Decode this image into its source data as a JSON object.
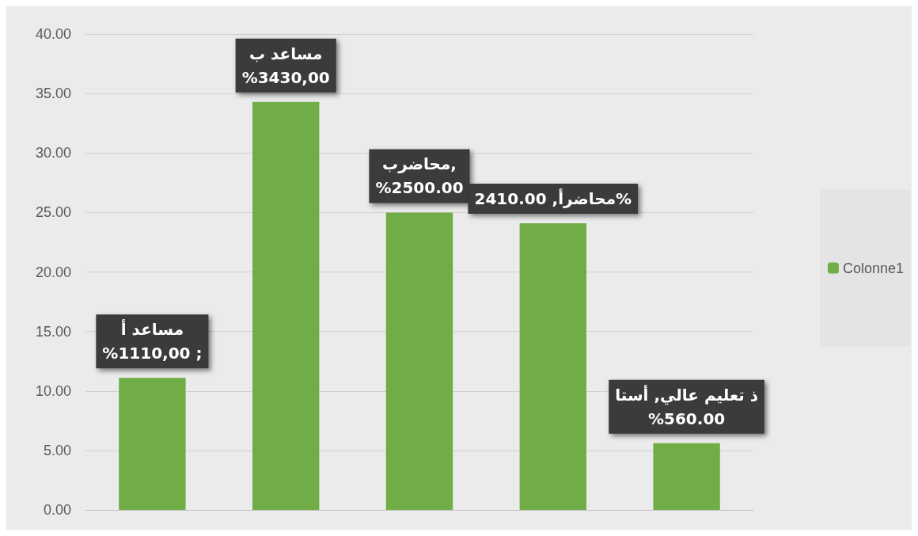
{
  "chart_data": {
    "type": "bar",
    "categories": [
      null,
      null,
      null,
      null,
      null
    ],
    "series": [
      {
        "name": "Colonne1",
        "color": "#70ad47",
        "values": [
          11.1,
          34.3,
          25.0,
          24.1,
          5.6
        ],
        "value_labels": [
          "مساعد أ\n%1110,00 ;",
          "مساعد ب\n%3430,00",
          "محاضرب,\n%2500.00",
          "محاضرأ, 2410.00%",
          "ذ تعليم عالي, أستا\n%560.00"
        ]
      }
    ],
    "ylim": [
      0,
      40
    ],
    "yticks": [
      {
        "value": 0,
        "label": "0.00"
      },
      {
        "value": 5,
        "label": "5.00"
      },
      {
        "value": 10,
        "label": "10.00"
      },
      {
        "value": 15,
        "label": "15.00"
      },
      {
        "value": 20,
        "label": "20.00"
      },
      {
        "value": 25,
        "label": "25.00"
      },
      {
        "value": 30,
        "label": "30.00"
      },
      {
        "value": 35,
        "label": "35.00"
      },
      {
        "value": 40,
        "label": "40.00"
      }
    ],
    "grid": "y",
    "legend": "right"
  }
}
